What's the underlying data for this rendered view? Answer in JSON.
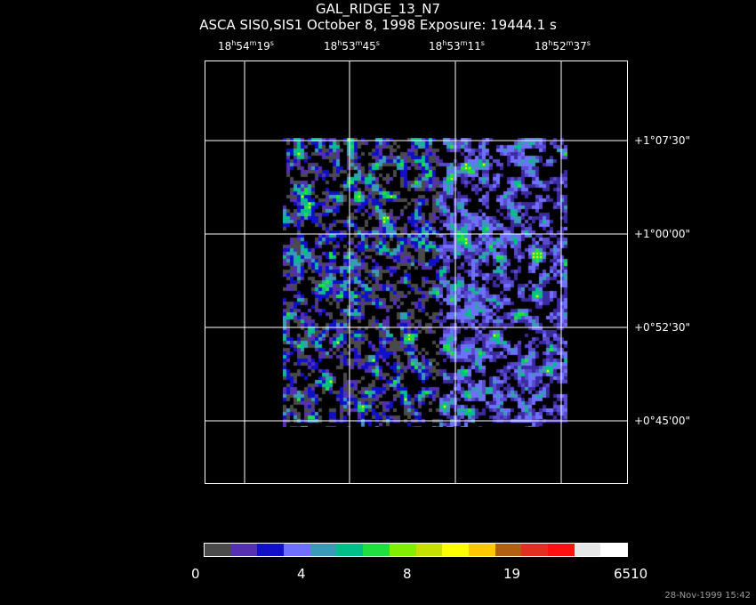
{
  "title": "GAL_RIDGE_13_N7",
  "subtitle": "ASCA SIS0,SIS1 October 8, 1998 Exposure: 19444.1 s",
  "ra_labels": [
    {
      "h": "18",
      "hs": "h",
      "m": "54",
      "ms": "m",
      "s": "19",
      "ss": "s"
    },
    {
      "h": "18",
      "hs": "h",
      "m": "53",
      "ms": "m",
      "s": "45",
      "ss": "s"
    },
    {
      "h": "18",
      "hs": "h",
      "m": "53",
      "ms": "m",
      "s": "11",
      "ss": "s"
    },
    {
      "h": "18",
      "hs": "h",
      "m": "52",
      "ms": "m",
      "s": "37",
      "ss": "s"
    }
  ],
  "dec_labels": [
    "+1°07'30\"",
    "+1°00'00\"",
    "+0°52'30\"",
    "+0°45'00\""
  ],
  "colorbar": {
    "colors": [
      "#4a4a4a",
      "#5530b0",
      "#1010c8",
      "#7070ff",
      "#3a9ab8",
      "#00c08a",
      "#20e040",
      "#80f000",
      "#c8e000",
      "#ffff00",
      "#ffc800",
      "#b06010",
      "#e03020",
      "#ff1010",
      "#e6e6e6",
      "#ffffff"
    ],
    "tick_labels": [
      "0",
      "4",
      "8",
      "19",
      "6510"
    ]
  },
  "timestamp": "28-Nov-1999 15:42",
  "frame_color": "#ffffff",
  "background_color": "#000000"
}
